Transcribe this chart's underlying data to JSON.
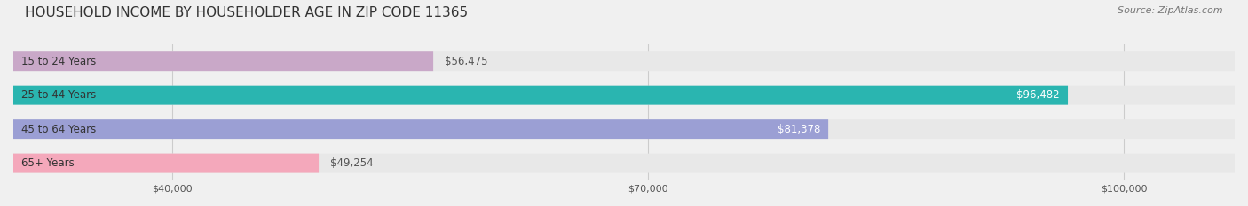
{
  "title": "HOUSEHOLD INCOME BY HOUSEHOLDER AGE IN ZIP CODE 11365",
  "source": "Source: ZipAtlas.com",
  "categories": [
    "15 to 24 Years",
    "25 to 44 Years",
    "45 to 64 Years",
    "65+ Years"
  ],
  "values": [
    56475,
    96482,
    81378,
    49254
  ],
  "bar_colors": [
    "#c9a8c8",
    "#2ab5b0",
    "#9b9fd4",
    "#f4a8bb"
  ],
  "background_color": "#f0f0f0",
  "bar_bg_color": "#e8e8e8",
  "xlim": [
    30000,
    107000
  ],
  "xticks": [
    40000,
    70000,
    100000
  ],
  "xtick_labels": [
    "$40,000",
    "$70,000",
    "$100,000"
  ],
  "value_labels": [
    "$56,475",
    "$96,482",
    "$81,378",
    "$49,254"
  ],
  "title_fontsize": 11,
  "source_fontsize": 8,
  "label_fontsize": 8.5,
  "value_fontsize": 8.5
}
